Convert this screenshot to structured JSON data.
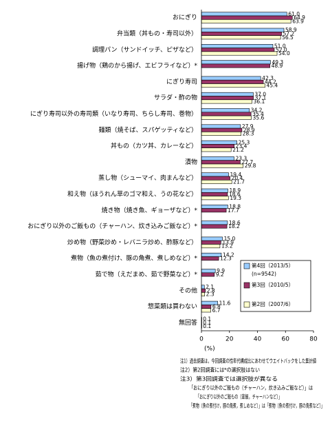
{
  "chart_data": {
    "type": "bar",
    "orientation": "horizontal",
    "categories": [
      "おにぎり",
      "弁当類（丼もの・寿司以外）",
      "調理パン（サンドイッチ、ピザなど）",
      "揚げ物（鶏のから揚げ、エビフライなど）*",
      "にぎり寿司",
      "サラダ・酢の物",
      "にぎり寿司以外の寿司類（いなり寿司、ちらし寿司、巻物）",
      "麺類（焼そば、スパゲッティなど）",
      "丼もの（カツ丼、カレーなど）",
      "漬物",
      "蒸し物（シューマイ、肉まんなど）",
      "和え物（ほうれん草のゴマ和え、うの花など）",
      "焼き物（焼き魚、ギョーザなど）*",
      "おにぎり以外のご飯もの（チャーハン、炊き込みご飯など）*",
      "炒め物（野菜炒め・レバニラ炒め、酢豚など）",
      "煮物（魚の煮付け、豚の角煮、煮しめなど）*",
      "茹で物（えだまめ、茹で野菜など）*",
      "その他",
      "惣菜類は買わない",
      "無回答"
    ],
    "series": [
      {
        "name": "第4回（2013/5）",
        "color": "#99ccff",
        "values": [
          61.0,
          58.9,
          51.0,
          49.3,
          42.3,
          37.0,
          34.2,
          27.9,
          25.3,
          23.3,
          19.4,
          18.9,
          18.8,
          18.6,
          15.0,
          14.2,
          9.9,
          2.1,
          11.6,
          0.1
        ],
        "value_labels": [
          "61.0",
          "58.9",
          "51.0",
          "49.3",
          "42.3",
          "37.0",
          "34.2",
          "27.9",
          "25.3",
          "23.3",
          "19.4",
          "18.9",
          "18.8",
          "18.6",
          "15.0",
          "14.2",
          "9.9",
          "2.1",
          "11.6",
          "0.1"
        ]
      },
      {
        "name": "第3回（2010/5）",
        "color": "#993366",
        "values": [
          64.9,
          57.2,
          52.0,
          48.9,
          44.2,
          37.1,
          35.4,
          28.9,
          23.4,
          27.7,
          20.4,
          18.6,
          17.7,
          18.2,
          13.9,
          12.3,
          9.2,
          2.8,
          6.8,
          0.1
        ],
        "value_labels": [
          "64.9",
          "57.2",
          "52.0",
          "48.9",
          "44.2",
          "37.1",
          "35.4",
          "28.9",
          "23.4",
          "27.7",
          "20.4",
          "18.6",
          "17.7",
          "18.2",
          "13.9",
          "12.3",
          "9.2",
          "2.8",
          "6.8",
          "0.1"
        ]
      },
      {
        "name": "第2回（2007/6）",
        "color": "#ffffcc",
        "values": [
          63.9,
          56.5,
          54.0,
          null,
          45.4,
          36.1,
          35.6,
          28.3,
          21.2,
          29.8,
          21.7,
          19.3,
          null,
          null,
          13.2,
          null,
          null,
          2.3,
          6.7,
          0.1
        ],
        "value_labels": [
          "63.9",
          "56.5",
          "54.0",
          null,
          "45.4",
          "36.1",
          "35.6",
          "28.3",
          "21.2",
          "29.8",
          "21.7",
          "19.3",
          null,
          null,
          "13.2",
          null,
          null,
          "2.3",
          "6.7",
          "0.1"
        ]
      }
    ],
    "legend_note": "(n=9542)",
    "xlabel": "(%)",
    "xlim": [
      0,
      80
    ],
    "xticks": [
      0,
      20,
      40,
      60,
      80
    ],
    "notes": [
      "注1）過去調査は，今回調査の性年代構成比にあわせてウエイトバックをした集計値",
      "注2）第2回調査には*の選択肢はない",
      "注3）第3回調査では選択肢が異なる",
      "「おにぎり以外のご飯もの（チャーハン，炊き込みご飯など）」は",
      "「おにぎり以外のご飯もの（釜飯，チャーハンなど）」",
      "「煮物（魚の煮付け，豚の角煮，煮しめなど）」は「煮物（魚の煮付け，豚の角煮など）」"
    ]
  }
}
